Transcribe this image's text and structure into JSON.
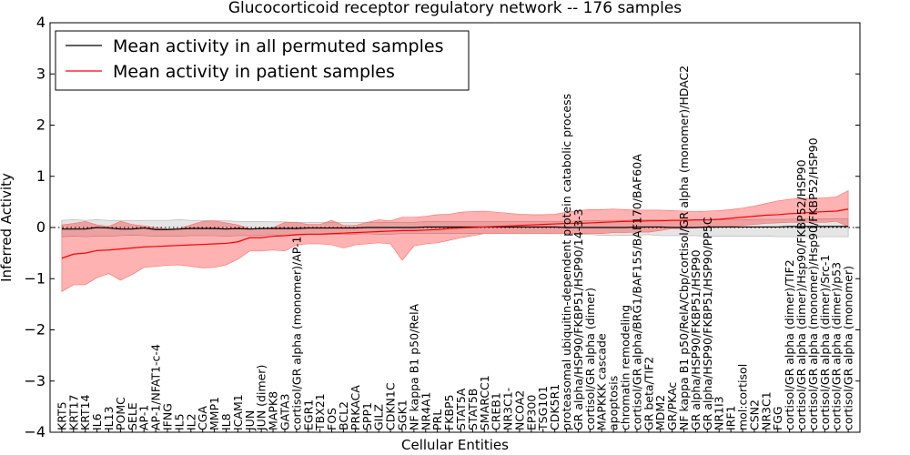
{
  "chart_data": {
    "type": "line",
    "title": "Glucocorticoid receptor regulatory network -- 176 samples",
    "xlabel": "Cellular Entities",
    "ylabel": "Inferred Activity",
    "ylim": [
      -4,
      4
    ],
    "yticks": [
      -4,
      -3,
      -2,
      -1,
      0,
      1,
      2,
      3,
      4
    ],
    "grid": false,
    "legend_position": "top-left",
    "reference_line": 0,
    "categories": [
      "KRT5",
      "KRT17",
      "KRT14",
      "IL6",
      "IL13",
      "POMC",
      "SELE",
      "AP-1",
      "AP-1/NFAT1-c-4",
      "IFNG",
      "IL5",
      "IL2",
      "CGA",
      "MMP1",
      "IL8",
      "ICAM1",
      "JUN",
      "JUN (dimer)",
      "MAPK8",
      "GATA3",
      "cortisol/GR alpha (monomer)/AP-1",
      "EGR1",
      "TBX21",
      "FOS",
      "BCL2",
      "PRKACA",
      "SPP1",
      "GILZ",
      "CDKN1C",
      "SGK1",
      "NF kappa B1 p50/RelA",
      "NR4A1",
      "PRL",
      "FKBP5",
      "STAT5A",
      "STAT5B",
      "SMARCC1",
      "CREB1",
      "NR3C1-",
      "NCOA2",
      "EP300",
      "TSG101",
      "CDK5R1",
      "proteasomal ubiquitin-dependent protein catabolic process",
      "GR alpha/HSP90/FKBP51/HSP90/14-3-3",
      "cortisol/GR alpha (dimer)",
      "MAPKKK cascade",
      "apoptosis",
      "chromatin remodeling",
      "cortisol/GR alpha/BRG1/BAF155/BAF170/BAF60A",
      "GR beta/TIF2",
      "MDM2",
      "GR/PKAc",
      "NF kappa B1 p50/RelA/Cbp/cortisol/GR alpha (monomer)/HDAC2",
      "GR alpha/HSP90/FKBP51/HSP90",
      "GR alpha/HSP90/FKBP51/HSP90/PP5C",
      "NR1I3",
      "IRF1",
      "mol:cortisol",
      "CSN2",
      "NR3C1",
      "FGG",
      "cortisol/GR alpha (dimer)/TIF2",
      "cortisol/GR alpha (dimer)/Hsp90/FKBP52/HSP90",
      "cortisol/GR alpha (monomer)/Hsp90/FKBP52/HSP90",
      "cortisol/GR alpha (dimer)/Src-1",
      "cortisol/GR alpha (dimer)/p53",
      "cortisol/GR alpha (monomer)"
    ],
    "series": [
      {
        "name": "Mean activity in all permuted samples",
        "color": "#000000",
        "x": [
          1,
          2,
          3,
          4,
          5,
          6,
          7,
          8,
          9,
          10,
          11,
          12,
          13,
          14,
          15,
          16,
          17,
          18,
          19,
          20,
          21,
          22,
          23,
          24,
          25,
          26,
          27,
          28,
          29,
          30,
          31,
          32,
          33,
          34,
          35,
          36,
          37,
          38,
          39,
          40,
          41,
          42,
          43,
          44,
          45,
          46,
          47,
          48,
          49,
          50,
          51,
          52,
          53,
          54,
          55,
          56,
          57,
          58,
          59,
          60,
          61,
          62,
          63,
          64,
          65,
          66,
          67,
          68
        ],
        "values": [
          -0.03,
          -0.03,
          -0.03,
          0.0,
          -0.01,
          -0.03,
          -0.03,
          -0.01,
          -0.04,
          -0.04,
          -0.03,
          -0.02,
          -0.02,
          -0.02,
          -0.03,
          -0.02,
          -0.03,
          -0.02,
          -0.02,
          -0.02,
          -0.02,
          -0.01,
          -0.01,
          -0.01,
          -0.01,
          -0.01,
          0.0,
          0.0,
          0.0,
          0.0,
          0.0,
          0.01,
          0.01,
          0.01,
          0.01,
          0.01,
          0.01,
          0.01,
          0.01,
          0.01,
          0.01,
          0.01,
          0.01,
          0.0,
          0.0,
          0.0,
          0.0,
          0.0,
          0.0,
          0.01,
          0.01,
          0.01,
          0.0,
          0.0,
          0.0,
          0.01,
          0.01,
          0.01,
          0.01,
          0.01,
          0.01,
          0.01,
          0.02,
          0.02,
          0.02,
          0.02,
          0.02,
          0.02
        ],
        "lower": [
          -0.18,
          -0.17,
          -0.18,
          -0.17,
          -0.17,
          -0.16,
          -0.15,
          -0.16,
          -0.17,
          -0.17,
          -0.17,
          -0.16,
          -0.16,
          -0.16,
          -0.17,
          -0.16,
          -0.16,
          -0.15,
          -0.14,
          -0.16,
          -0.15,
          -0.14,
          -0.14,
          -0.13,
          -0.14,
          -0.13,
          -0.12,
          -0.14,
          -0.13,
          -0.12,
          -0.12,
          -0.12,
          -0.12,
          -0.12,
          -0.12,
          -0.12,
          -0.12,
          -0.12,
          -0.12,
          -0.12,
          -0.12,
          -0.12,
          -0.12,
          -0.12,
          -0.13,
          -0.14,
          -0.15,
          -0.16,
          -0.15,
          -0.15,
          -0.14,
          -0.16,
          -0.16,
          -0.16,
          -0.16,
          -0.17,
          -0.17,
          -0.17,
          -0.17,
          -0.17,
          -0.17,
          -0.18,
          -0.18,
          -0.18,
          -0.18,
          -0.18,
          -0.18,
          -0.18
        ],
        "upper": [
          0.14,
          0.15,
          0.14,
          0.15,
          0.14,
          0.13,
          0.13,
          0.14,
          0.14,
          0.14,
          0.15,
          0.14,
          0.14,
          0.13,
          0.13,
          0.12,
          0.12,
          0.12,
          0.11,
          0.11,
          0.1,
          0.1,
          0.1,
          0.1,
          0.1,
          0.1,
          0.1,
          0.1,
          0.1,
          0.1,
          0.1,
          0.12,
          0.12,
          0.12,
          0.12,
          0.12,
          0.12,
          0.12,
          0.12,
          0.12,
          0.12,
          0.12,
          0.12,
          0.12,
          0.13,
          0.13,
          0.14,
          0.14,
          0.14,
          0.15,
          0.15,
          0.15,
          0.14,
          0.14,
          0.14,
          0.14,
          0.15,
          0.15,
          0.15,
          0.16,
          0.16,
          0.16,
          0.16,
          0.17,
          0.17,
          0.17,
          0.17,
          0.17
        ]
      },
      {
        "name": "Mean activity in patient samples",
        "color": "#ff0000",
        "x": [
          1,
          2,
          3,
          4,
          5,
          6,
          7,
          8,
          9,
          10,
          11,
          12,
          13,
          14,
          15,
          16,
          17,
          18,
          19,
          20,
          21,
          22,
          23,
          24,
          25,
          26,
          27,
          28,
          29,
          30,
          31,
          32,
          33,
          34,
          35,
          36,
          37,
          38,
          39,
          40,
          41,
          42,
          43,
          44,
          45,
          46,
          47,
          48,
          49,
          50,
          51,
          52,
          53,
          54,
          55,
          56,
          57,
          58,
          59,
          60,
          61,
          62,
          63,
          64,
          65,
          66,
          67,
          68
        ],
        "values": [
          -0.6,
          -0.52,
          -0.5,
          -0.45,
          -0.44,
          -0.42,
          -0.4,
          -0.38,
          -0.37,
          -0.36,
          -0.35,
          -0.34,
          -0.33,
          -0.32,
          -0.31,
          -0.28,
          -0.2,
          -0.2,
          -0.17,
          -0.16,
          -0.14,
          -0.13,
          -0.13,
          -0.12,
          -0.11,
          -0.1,
          -0.09,
          -0.08,
          -0.07,
          -0.06,
          -0.06,
          -0.05,
          -0.04,
          -0.02,
          -0.01,
          0.0,
          0.01,
          0.02,
          0.03,
          0.04,
          0.05,
          0.06,
          0.07,
          0.08,
          0.08,
          0.09,
          0.1,
          0.11,
          0.12,
          0.12,
          0.13,
          0.13,
          0.14,
          0.14,
          0.15,
          0.15,
          0.16,
          0.18,
          0.2,
          0.22,
          0.24,
          0.25,
          0.27,
          0.28,
          0.3,
          0.31,
          0.32,
          0.36
        ],
        "lower": [
          -1.25,
          -1.12,
          -1.12,
          -0.98,
          -0.9,
          -1.03,
          -0.92,
          -0.78,
          -0.76,
          -0.74,
          -0.73,
          -0.76,
          -0.79,
          -0.78,
          -0.73,
          -0.62,
          -0.46,
          -0.46,
          -0.44,
          -0.46,
          -0.34,
          -0.32,
          -0.32,
          -0.34,
          -0.4,
          -0.34,
          -0.32,
          -0.3,
          -0.32,
          -0.64,
          -0.36,
          -0.32,
          -0.3,
          -0.25,
          -0.2,
          -0.16,
          -0.12,
          -0.12,
          -0.12,
          -0.12,
          -0.12,
          -0.12,
          -0.12,
          -0.12,
          -0.12,
          -0.12,
          -0.12,
          -0.1,
          -0.1,
          -0.09,
          -0.09,
          -0.06,
          -0.02,
          -0.02,
          -0.01,
          0.0,
          0.0,
          0.02,
          0.04,
          0.06,
          0.08,
          0.09,
          0.1,
          0.1,
          0.1,
          0.1,
          0.12,
          0.02
        ],
        "upper": [
          0.05,
          0.08,
          0.12,
          0.05,
          0.02,
          0.12,
          0.06,
          0.03,
          0.0,
          -0.03,
          -0.02,
          0.05,
          0.12,
          0.13,
          0.09,
          0.05,
          -0.02,
          -0.03,
          0.0,
          0.1,
          0.1,
          0.06,
          0.06,
          0.14,
          0.04,
          0.04,
          0.1,
          0.15,
          0.13,
          0.2,
          0.2,
          0.22,
          0.25,
          0.26,
          0.3,
          0.31,
          0.32,
          0.3,
          0.28,
          0.26,
          0.25,
          0.25,
          0.26,
          0.3,
          0.33,
          0.35,
          0.35,
          0.36,
          0.35,
          0.34,
          0.34,
          0.34,
          0.33,
          0.32,
          0.31,
          0.32,
          0.33,
          0.35,
          0.38,
          0.42,
          0.47,
          0.52,
          0.55,
          0.57,
          0.57,
          0.58,
          0.6,
          0.72
        ]
      }
    ]
  }
}
